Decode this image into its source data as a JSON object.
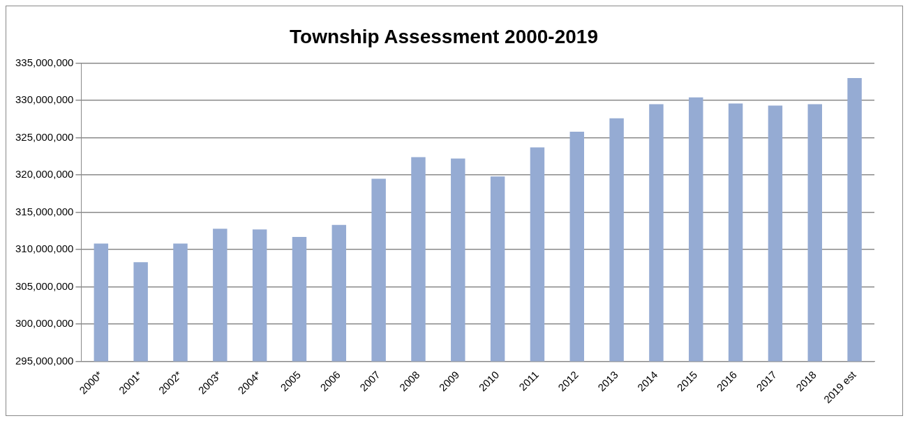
{
  "chart_data": {
    "type": "bar",
    "title": "Township Assessment 2000-2019",
    "categories": [
      "2000*",
      "2001*",
      "2002*",
      "2003*",
      "2004*",
      "2005",
      "2006",
      "2007",
      "2008",
      "2009",
      "2010",
      "2011",
      "2012",
      "2013",
      "2014",
      "2015",
      "2016",
      "2017",
      "2018",
      "2019 est"
    ],
    "values": [
      310800000,
      308300000,
      310800000,
      312800000,
      312700000,
      311700000,
      313300000,
      319500000,
      322400000,
      322200000,
      319800000,
      323700000,
      325800000,
      327600000,
      329500000,
      330400000,
      329600000,
      329300000,
      329500000,
      333000000
    ],
    "color": "#95abd3",
    "ylim": [
      295000000,
      335000000
    ],
    "yticks": [
      {
        "value": 295000000,
        "label": "295,000,000"
      },
      {
        "value": 300000000,
        "label": "300,000,000"
      },
      {
        "value": 305000000,
        "label": "305,000,000"
      },
      {
        "value": 310000000,
        "label": "310,000,000"
      },
      {
        "value": 315000000,
        "label": "315,000,000"
      },
      {
        "value": 320000000,
        "label": "320,000,000"
      },
      {
        "value": 325000000,
        "label": "325,000,000"
      },
      {
        "value": 330000000,
        "label": "330,000,000"
      },
      {
        "value": 335000000,
        "label": "335,000,000"
      }
    ],
    "grid": "y"
  }
}
